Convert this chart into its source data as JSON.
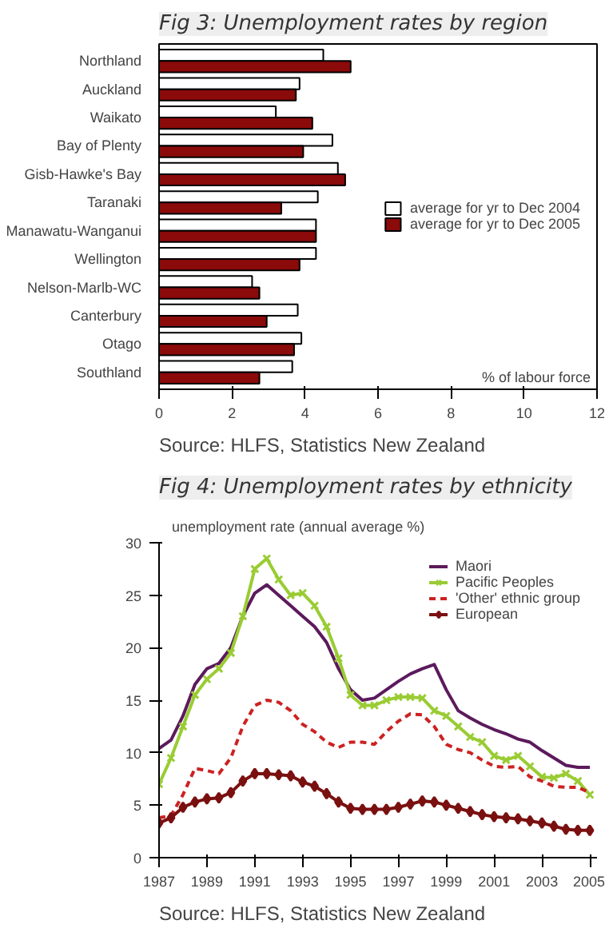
{
  "chart_data": [
    {
      "type": "bar",
      "orientation": "horizontal",
      "title": "Fig 3: Unemployment rates by region",
      "xlabel": "% of labour force",
      "categories": [
        "Northland",
        "Auckland",
        "Waikato",
        "Bay of Plenty",
        "Gisb-Hawke's Bay",
        "Taranaki",
        "Manawatu-Wanganui",
        "Wellington",
        "Nelson-Marlb-WC",
        "Canterbury",
        "Otago",
        "Southland"
      ],
      "series": [
        {
          "name": "average for yr to Dec 2004",
          "color": "#ffffff",
          "values": [
            4.5,
            3.85,
            3.2,
            4.75,
            4.9,
            4.35,
            4.3,
            4.3,
            2.55,
            3.8,
            3.9,
            3.65
          ]
        },
        {
          "name": "average for yr to Dec 2005",
          "color": "#8b0a0a",
          "values": [
            5.25,
            3.75,
            4.2,
            3.95,
            5.1,
            3.35,
            4.3,
            3.85,
            2.75,
            2.95,
            3.7,
            2.75
          ]
        }
      ],
      "xlim": [
        0,
        12
      ],
      "xticks": [
        0,
        2,
        4,
        6,
        8,
        10,
        12
      ],
      "grid": false,
      "legend": "right",
      "annotations": [
        "Source: HLFS, Statistics New Zealand"
      ]
    },
    {
      "type": "line",
      "title": "Fig 4: Unemployment rates by ethnicity",
      "ylabel": "unemployment rate (annual average %)",
      "x": [
        1987,
        1987.5,
        1988,
        1988.5,
        1989,
        1989.5,
        1990,
        1990.5,
        1991,
        1991.5,
        1992,
        1992.5,
        1993,
        1993.5,
        1994,
        1994.5,
        1995,
        1995.5,
        1996,
        1996.5,
        1997,
        1997.5,
        1998,
        1998.5,
        1999,
        1999.5,
        2000,
        2000.5,
        2001,
        2001.5,
        2002,
        2002.5,
        2003,
        2003.5,
        2004,
        2004.5,
        2005
      ],
      "series": [
        {
          "name": "Maori",
          "color": "#5c1a5c",
          "marker": "none",
          "line_style": "solid",
          "values": [
            10.4,
            11.2,
            13.5,
            16.5,
            18,
            18.5,
            20,
            23,
            25.2,
            26,
            25,
            24,
            23,
            22,
            20.5,
            18,
            16,
            15,
            15.2,
            16,
            16.8,
            17.5,
            18,
            18.4,
            16,
            14,
            13.3,
            12.7,
            12.2,
            11.8,
            11.3,
            11,
            10.2,
            9.5,
            8.8,
            8.6,
            8.6
          ]
        },
        {
          "name": "Pacific Peoples",
          "color": "#99cc33",
          "marker": "cross",
          "line_style": "solid",
          "values": [
            7,
            9.5,
            12.5,
            15.5,
            17,
            18,
            19.5,
            23,
            27.5,
            28.5,
            26.5,
            25,
            25.2,
            24,
            22,
            19,
            15.5,
            14.5,
            14.5,
            15,
            15.3,
            15.3,
            15.2,
            14,
            13.5,
            12.5,
            11.5,
            11,
            9.7,
            9.3,
            9.7,
            8.7,
            7.7,
            7.6,
            8,
            7.3,
            6
          ]
        },
        {
          "name": "'Other' ethnic group",
          "color": "#cc2222",
          "marker": "none",
          "line_style": "dashed",
          "values": [
            3.8,
            4,
            6,
            8.5,
            8.3,
            8,
            9.5,
            12.5,
            14.5,
            15,
            14.8,
            14,
            12.7,
            12,
            11,
            10.5,
            11,
            11,
            10.8,
            12,
            13,
            13.7,
            13.6,
            12.5,
            10.8,
            10.3,
            10,
            9.3,
            8.7,
            8.6,
            8.7,
            7.7,
            7.3,
            6.8,
            6.7,
            6.7,
            6.2
          ]
        },
        {
          "name": "European",
          "color": "#7a1010",
          "marker": "diamond",
          "line_style": "solid",
          "values": [
            3.3,
            3.8,
            4.8,
            5.3,
            5.6,
            5.7,
            6.2,
            7.3,
            8,
            8,
            7.9,
            7.8,
            7.2,
            6.8,
            6.1,
            5.3,
            4.7,
            4.6,
            4.6,
            4.6,
            4.8,
            5.1,
            5.4,
            5.3,
            5,
            4.7,
            4.4,
            4.1,
            3.9,
            3.8,
            3.7,
            3.5,
            3.3,
            3,
            2.7,
            2.6,
            2.6
          ]
        }
      ],
      "xlim": [
        1987,
        2005.3
      ],
      "xticks": [
        1987,
        1989,
        1991,
        1993,
        1995,
        1997,
        1999,
        2001,
        2003,
        2005
      ],
      "ylim": [
        0,
        30
      ],
      "yticks": [
        0,
        5,
        10,
        15,
        20,
        25,
        30
      ],
      "grid": false,
      "legend": "top right",
      "annotations": [
        "Source: HLFS, Statistics New Zealand"
      ]
    }
  ]
}
